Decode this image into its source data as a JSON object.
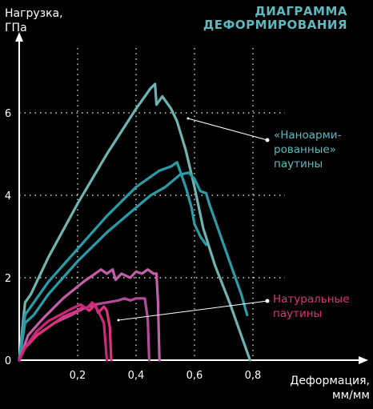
{
  "chart_data": {
    "type": "line",
    "title_lines": [
      "ДИАГРАММА",
      "ДЕФОРМИРОВАНИЯ"
    ],
    "ylabel_lines": [
      "Нагрузка,",
      "ГПа"
    ],
    "xlabel_lines": [
      "Деформация,",
      "мм/мм"
    ],
    "xlim": [
      0,
      0.85
    ],
    "ylim": [
      0,
      7.2
    ],
    "x_ticks": [
      {
        "value": 0.2,
        "label": "0,2"
      },
      {
        "value": 0.4,
        "label": "0,4"
      },
      {
        "value": 0.6,
        "label": "0,6"
      },
      {
        "value": 0.8,
        "label": "0,8"
      }
    ],
    "y_ticks": [
      {
        "value": 0,
        "label": "0"
      },
      {
        "value": 2,
        "label": "2"
      },
      {
        "value": 4,
        "label": "4"
      },
      {
        "value": 6,
        "label": "6"
      }
    ],
    "grid": true,
    "groups": [
      {
        "label_lines": [
          "«Наноарми-",
          "рованные»",
          "паутины"
        ],
        "color": "#5fb8bd",
        "legend_position": "right-middle"
      },
      {
        "label_lines": [
          "Натуральные",
          "паутины"
        ],
        "color": "#e0317f",
        "legend_position": "right-lower"
      }
    ],
    "series": [
      {
        "group": 0,
        "color": "#6fb3b2",
        "points": [
          [
            0,
            0
          ],
          [
            0.02,
            1.4
          ],
          [
            0.04,
            1.6
          ],
          [
            0.1,
            2.5
          ],
          [
            0.2,
            3.8
          ],
          [
            0.3,
            5.0
          ],
          [
            0.4,
            6.1
          ],
          [
            0.45,
            6.6
          ],
          [
            0.465,
            6.7
          ],
          [
            0.47,
            6.2
          ],
          [
            0.49,
            6.4
          ],
          [
            0.52,
            6.1
          ],
          [
            0.54,
            5.8
          ],
          [
            0.57,
            5.1
          ],
          [
            0.6,
            4.2
          ],
          [
            0.63,
            3.2
          ],
          [
            0.67,
            2.3
          ],
          [
            0.72,
            1.4
          ],
          [
            0.76,
            0.6
          ],
          [
            0.79,
            0
          ]
        ]
      },
      {
        "group": 0,
        "color": "#2a9ca7",
        "points": [
          [
            0,
            0
          ],
          [
            0.02,
            1.1
          ],
          [
            0.04,
            1.3
          ],
          [
            0.1,
            1.9
          ],
          [
            0.2,
            2.7
          ],
          [
            0.3,
            3.5
          ],
          [
            0.4,
            4.2
          ],
          [
            0.48,
            4.6
          ],
          [
            0.52,
            4.7
          ],
          [
            0.54,
            4.8
          ],
          [
            0.55,
            4.6
          ],
          [
            0.57,
            4.2
          ],
          [
            0.59,
            3.7
          ],
          [
            0.6,
            3.3
          ],
          [
            0.62,
            3.0
          ],
          [
            0.64,
            2.8
          ]
        ]
      },
      {
        "group": 0,
        "color": "#2a9ca7",
        "points": [
          [
            0,
            0
          ],
          [
            0.02,
            0.9
          ],
          [
            0.05,
            1.1
          ],
          [
            0.1,
            1.6
          ],
          [
            0.2,
            2.4
          ],
          [
            0.3,
            3.1
          ],
          [
            0.4,
            3.7
          ],
          [
            0.45,
            4.0
          ],
          [
            0.5,
            4.2
          ],
          [
            0.55,
            4.5
          ],
          [
            0.58,
            4.55
          ],
          [
            0.6,
            4.4
          ],
          [
            0.62,
            4.1
          ],
          [
            0.64,
            4.05
          ],
          [
            0.65,
            3.8
          ],
          [
            0.67,
            3.4
          ],
          [
            0.7,
            2.8
          ],
          [
            0.73,
            2.2
          ],
          [
            0.76,
            1.6
          ],
          [
            0.78,
            1.1
          ]
        ]
      },
      {
        "group": 1,
        "color": "#c25fa8",
        "points": [
          [
            0,
            0
          ],
          [
            0.03,
            0.6
          ],
          [
            0.08,
            1.0
          ],
          [
            0.15,
            1.5
          ],
          [
            0.22,
            1.9
          ],
          [
            0.25,
            2.05
          ],
          [
            0.28,
            2.2
          ],
          [
            0.3,
            2.1
          ],
          [
            0.32,
            2.2
          ],
          [
            0.33,
            1.95
          ],
          [
            0.35,
            2.1
          ],
          [
            0.38,
            2.0
          ],
          [
            0.4,
            2.15
          ],
          [
            0.42,
            2.1
          ],
          [
            0.44,
            2.2
          ],
          [
            0.46,
            2.1
          ],
          [
            0.47,
            2.1
          ],
          [
            0.475,
            1.4
          ],
          [
            0.48,
            0
          ]
        ]
      },
      {
        "group": 1,
        "color": "#b04c98",
        "points": [
          [
            0,
            0
          ],
          [
            0.02,
            0.3
          ],
          [
            0.06,
            0.6
          ],
          [
            0.12,
            0.9
          ],
          [
            0.18,
            1.1
          ],
          [
            0.22,
            1.25
          ],
          [
            0.26,
            1.35
          ],
          [
            0.3,
            1.4
          ],
          [
            0.34,
            1.45
          ],
          [
            0.36,
            1.5
          ],
          [
            0.38,
            1.45
          ],
          [
            0.4,
            1.5
          ],
          [
            0.42,
            1.5
          ],
          [
            0.43,
            1.5
          ],
          [
            0.44,
            1.0
          ],
          [
            0.445,
            0
          ]
        ]
      },
      {
        "group": 1,
        "color": "#e0317f",
        "points": [
          [
            0,
            0
          ],
          [
            0.02,
            0.3
          ],
          [
            0.06,
            0.6
          ],
          [
            0.1,
            0.8
          ],
          [
            0.15,
            1.05
          ],
          [
            0.2,
            1.2
          ],
          [
            0.22,
            1.3
          ],
          [
            0.24,
            1.2
          ],
          [
            0.26,
            1.35
          ],
          [
            0.27,
            1.15
          ],
          [
            0.29,
            1.3
          ],
          [
            0.3,
            1.2
          ],
          [
            0.31,
            0.8
          ],
          [
            0.315,
            0
          ]
        ]
      },
      {
        "group": 1,
        "color": "#d0267a",
        "points": [
          [
            0,
            0
          ],
          [
            0.02,
            0.3
          ],
          [
            0.06,
            0.7
          ],
          [
            0.1,
            0.95
          ],
          [
            0.14,
            1.1
          ],
          [
            0.18,
            1.25
          ],
          [
            0.21,
            1.35
          ],
          [
            0.23,
            1.25
          ],
          [
            0.25,
            1.4
          ],
          [
            0.27,
            1.2
          ],
          [
            0.29,
            0.9
          ],
          [
            0.3,
            0
          ]
        ]
      }
    ]
  }
}
